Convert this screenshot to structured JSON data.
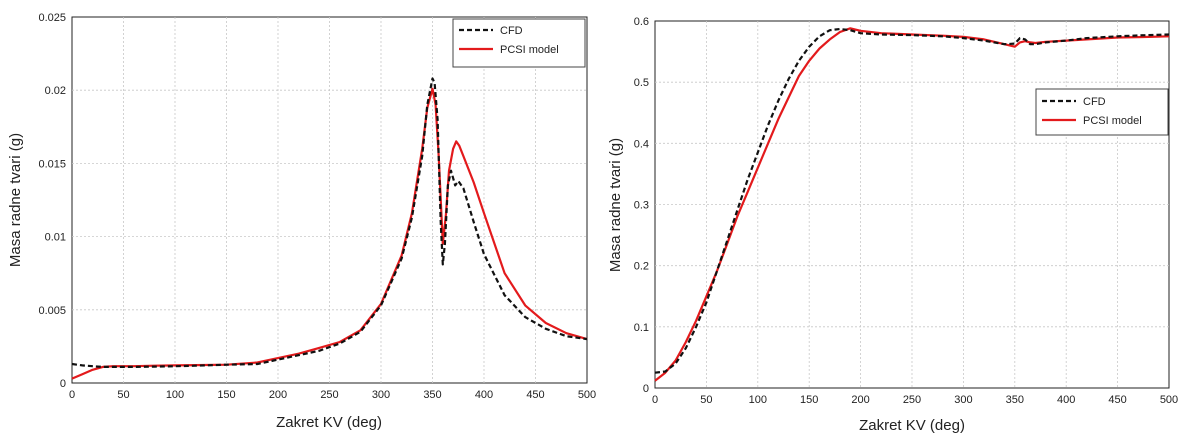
{
  "chart_data": [
    {
      "type": "line",
      "xlabel": "Zakret KV (deg)",
      "ylabel": "Masa radne tvari (g)",
      "xlim": [
        0,
        500
      ],
      "ylim": [
        0,
        0.025
      ],
      "xticks": [
        "0",
        "50",
        "100",
        "150",
        "200",
        "250",
        "300",
        "350",
        "400",
        "450",
        "500"
      ],
      "yticks": [
        "0",
        "0.005",
        "0.01",
        "0.015",
        "0.02",
        "0.025"
      ],
      "grid": true,
      "legend_position": "top-right",
      "series": [
        {
          "name": "CFD",
          "color": "#111111",
          "style": "dashed",
          "x": [
            0,
            10,
            20,
            30,
            40,
            60,
            80,
            100,
            120,
            150,
            180,
            200,
            220,
            240,
            260,
            280,
            300,
            320,
            330,
            340,
            345,
            350,
            352,
            355,
            358,
            360,
            362,
            365,
            368,
            370,
            372,
            375,
            380,
            390,
            400,
            420,
            440,
            460,
            480,
            500
          ],
          "y": [
            0.0013,
            0.0012,
            0.00115,
            0.0011,
            0.0011,
            0.0011,
            0.00112,
            0.00115,
            0.00118,
            0.00125,
            0.0013,
            0.0016,
            0.0019,
            0.0022,
            0.0027,
            0.0035,
            0.0053,
            0.0085,
            0.0113,
            0.0155,
            0.019,
            0.0208,
            0.0205,
            0.018,
            0.011,
            0.0081,
            0.0095,
            0.0135,
            0.0145,
            0.014,
            0.0135,
            0.0138,
            0.0133,
            0.011,
            0.0088,
            0.006,
            0.0045,
            0.0037,
            0.0032,
            0.003
          ]
        },
        {
          "name": "PCSI model",
          "color": "#e31a1c",
          "style": "solid",
          "x": [
            0,
            10,
            20,
            30,
            40,
            60,
            80,
            100,
            120,
            150,
            180,
            200,
            220,
            240,
            260,
            280,
            300,
            320,
            330,
            340,
            345,
            350,
            353,
            356,
            360,
            363,
            366,
            370,
            373,
            376,
            380,
            390,
            400,
            420,
            440,
            460,
            480,
            500
          ],
          "y": [
            0.0003,
            0.0006,
            0.0009,
            0.0011,
            0.00115,
            0.00115,
            0.00118,
            0.0012,
            0.00122,
            0.00125,
            0.0014,
            0.0017,
            0.002,
            0.0024,
            0.0028,
            0.0036,
            0.0054,
            0.0087,
            0.0116,
            0.016,
            0.0188,
            0.0201,
            0.019,
            0.0155,
            0.0095,
            0.0115,
            0.0145,
            0.016,
            0.0165,
            0.0162,
            0.0155,
            0.0137,
            0.0116,
            0.0075,
            0.0053,
            0.0041,
            0.0034,
            0.003
          ]
        }
      ]
    },
    {
      "type": "line",
      "xlabel": "Zakret KV (deg)",
      "ylabel": "Masa radne tvari (g)",
      "xlim": [
        0,
        500
      ],
      "ylim": [
        0,
        0.6
      ],
      "xticks": [
        "0",
        "50",
        "100",
        "150",
        "200",
        "250",
        "300",
        "350",
        "400",
        "450",
        "500"
      ],
      "yticks": [
        "0",
        "0.1",
        "0.2",
        "0.3",
        "0.4",
        "0.5",
        "0.6"
      ],
      "grid": true,
      "legend_position": "center-right",
      "series": [
        {
          "name": "CFD",
          "color": "#111111",
          "style": "dashed",
          "x": [
            0,
            10,
            20,
            30,
            40,
            50,
            60,
            70,
            80,
            90,
            100,
            110,
            120,
            130,
            140,
            150,
            160,
            170,
            180,
            190,
            200,
            220,
            250,
            280,
            300,
            320,
            340,
            350,
            355,
            360,
            365,
            370,
            380,
            400,
            420,
            450,
            480,
            500
          ],
          "y": [
            0.025,
            0.027,
            0.04,
            0.065,
            0.1,
            0.14,
            0.19,
            0.24,
            0.29,
            0.34,
            0.385,
            0.43,
            0.47,
            0.505,
            0.535,
            0.558,
            0.575,
            0.585,
            0.587,
            0.585,
            0.58,
            0.578,
            0.577,
            0.575,
            0.572,
            0.568,
            0.562,
            0.563,
            0.572,
            0.57,
            0.562,
            0.562,
            0.565,
            0.568,
            0.572,
            0.575,
            0.577,
            0.578
          ]
        },
        {
          "name": "PCSI model",
          "color": "#e31a1c",
          "style": "solid",
          "x": [
            0,
            10,
            20,
            30,
            40,
            50,
            60,
            70,
            80,
            90,
            100,
            110,
            120,
            130,
            140,
            150,
            160,
            170,
            180,
            190,
            200,
            220,
            250,
            280,
            300,
            320,
            340,
            350,
            355,
            360,
            365,
            370,
            380,
            400,
            420,
            450,
            480,
            500
          ],
          "y": [
            0.012,
            0.025,
            0.045,
            0.075,
            0.11,
            0.15,
            0.19,
            0.235,
            0.28,
            0.32,
            0.36,
            0.4,
            0.44,
            0.475,
            0.51,
            0.535,
            0.555,
            0.57,
            0.582,
            0.588,
            0.584,
            0.58,
            0.578,
            0.576,
            0.574,
            0.57,
            0.562,
            0.558,
            0.565,
            0.567,
            0.565,
            0.564,
            0.566,
            0.568,
            0.57,
            0.573,
            0.574,
            0.575
          ]
        }
      ]
    }
  ]
}
